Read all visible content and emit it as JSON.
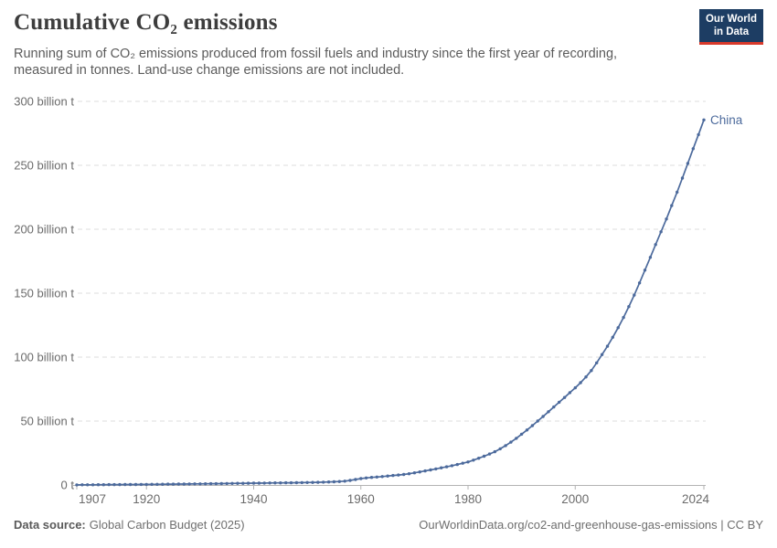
{
  "header": {
    "title": "Cumulative CO₂ emissions",
    "subtitle_line1": "Running sum of CO₂ emissions produced from fossil fuels and industry since the first year of recording,",
    "subtitle_line2": "measured in tonnes. Land-use change emissions are not included."
  },
  "logo": {
    "line1": "Our World",
    "line2": "in Data",
    "bg_color": "#1d3d63",
    "accent_color": "#d93a2b"
  },
  "footer": {
    "datasource_label": "Data source:",
    "datasource_value": "Global Carbon Budget (2025)",
    "right": "OurWorldinData.org/co2-and-greenhouse-gas-emissions | CC BY"
  },
  "chart_data": {
    "type": "line",
    "title": "Cumulative CO₂ emissions",
    "unit": "billion t",
    "ylim": [
      0,
      300
    ],
    "grid": "dashed-horizontal",
    "line_color": "#4C6A9C",
    "entity_label": "China",
    "yticks": [
      {
        "value": 0,
        "label": "0 t"
      },
      {
        "value": 50,
        "label": "50 billion t"
      },
      {
        "value": 100,
        "label": "100 billion t"
      },
      {
        "value": 150,
        "label": "150 billion t"
      },
      {
        "value": 200,
        "label": "200 billion t"
      },
      {
        "value": 250,
        "label": "250 billion t"
      },
      {
        "value": 300,
        "label": "300 billion t"
      }
    ],
    "xticks": [
      {
        "year": 1907,
        "label": "1907"
      },
      {
        "year": 1920,
        "label": "1920"
      },
      {
        "year": 1940,
        "label": "1940"
      },
      {
        "year": 1960,
        "label": "1960"
      },
      {
        "year": 1980,
        "label": "1980"
      },
      {
        "year": 2000,
        "label": "2000"
      },
      {
        "year": 2024,
        "label": "2024"
      }
    ],
    "series": [
      {
        "name": "China",
        "years": [
          1907,
          1908,
          1909,
          1910,
          1911,
          1912,
          1913,
          1914,
          1915,
          1916,
          1917,
          1918,
          1919,
          1920,
          1921,
          1922,
          1923,
          1924,
          1925,
          1926,
          1927,
          1928,
          1929,
          1930,
          1931,
          1932,
          1933,
          1934,
          1935,
          1936,
          1937,
          1938,
          1939,
          1940,
          1941,
          1942,
          1943,
          1944,
          1945,
          1946,
          1947,
          1948,
          1949,
          1950,
          1951,
          1952,
          1953,
          1954,
          1955,
          1956,
          1957,
          1958,
          1959,
          1960,
          1961,
          1962,
          1963,
          1964,
          1965,
          1966,
          1967,
          1968,
          1969,
          1970,
          1971,
          1972,
          1973,
          1974,
          1975,
          1976,
          1977,
          1978,
          1979,
          1980,
          1981,
          1982,
          1983,
          1984,
          1985,
          1986,
          1987,
          1988,
          1989,
          1990,
          1991,
          1992,
          1993,
          1994,
          1995,
          1996,
          1997,
          1998,
          1999,
          2000,
          2001,
          2002,
          2003,
          2004,
          2005,
          2006,
          2007,
          2008,
          2009,
          2010,
          2011,
          2012,
          2013,
          2014,
          2015,
          2016,
          2017,
          2018,
          2019,
          2020,
          2021,
          2022,
          2023,
          2024
        ],
        "values": [
          0.1,
          0.12,
          0.15,
          0.17,
          0.2,
          0.22,
          0.25,
          0.28,
          0.3,
          0.33,
          0.36,
          0.39,
          0.42,
          0.45,
          0.49,
          0.53,
          0.57,
          0.61,
          0.65,
          0.69,
          0.73,
          0.78,
          0.83,
          0.88,
          0.93,
          0.98,
          1.03,
          1.08,
          1.14,
          1.2,
          1.26,
          1.31,
          1.36,
          1.41,
          1.46,
          1.51,
          1.56,
          1.61,
          1.65,
          1.69,
          1.74,
          1.8,
          1.86,
          1.93,
          2.01,
          2.1,
          2.21,
          2.33,
          2.47,
          2.7,
          3.0,
          3.6,
          4.3,
          5.0,
          5.5,
          5.9,
          6.25,
          6.6,
          7.0,
          7.4,
          7.8,
          8.25,
          8.8,
          9.5,
          10.2,
          11.0,
          11.8,
          12.6,
          13.4,
          14.2,
          15.1,
          16.0,
          17.0,
          18.0,
          19.4,
          20.9,
          22.5,
          24.2,
          26.0,
          28.3,
          30.8,
          33.5,
          36.5,
          39.7,
          43.0,
          46.4,
          50.0,
          53.6,
          57.3,
          61.0,
          64.7,
          68.4,
          72.2,
          76.0,
          80.0,
          84.5,
          89.5,
          95.5,
          102,
          108.5,
          115.5,
          123,
          131,
          139.5,
          148.5,
          158,
          168,
          178,
          188,
          198,
          208,
          218.5,
          229,
          240,
          251.5,
          263,
          274,
          285.5
        ]
      }
    ]
  }
}
